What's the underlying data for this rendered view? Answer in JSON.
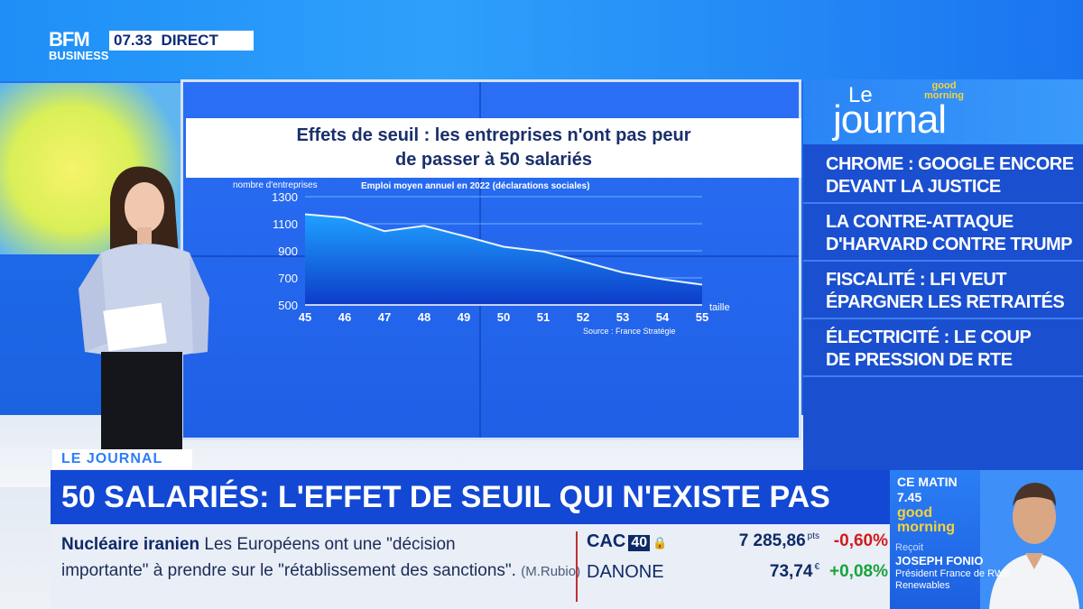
{
  "branding": {
    "logo_top": "BFM",
    "logo_bottom": "BUSINESS",
    "clock": "07.33",
    "live": "DIRECT"
  },
  "screen": {
    "title_line1": "Effets de seuil : les entreprises n'ont pas peur",
    "title_line2": "de passer à 50 salariés"
  },
  "chart_data": {
    "type": "area",
    "title": "Effets de seuil : les entreprises n'ont pas peur de passer à 50 salariés",
    "subtitle": "Emploi moyen annuel en 2022 (déclarations sociales)",
    "ylabel": "nombre d'entreprises",
    "xlabel": "taille",
    "source": "Source : France Stratégie",
    "x": [
      45,
      46,
      47,
      48,
      49,
      50,
      51,
      52,
      53,
      54,
      55
    ],
    "y": [
      1170,
      1145,
      1045,
      1085,
      1010,
      930,
      895,
      820,
      740,
      690,
      650
    ],
    "ylim": [
      500,
      1300
    ],
    "yticks": [
      1300,
      1100,
      900,
      700,
      500
    ],
    "grid": true,
    "colors": {
      "fill": "#1fa0ff",
      "line": "#e8f4ff",
      "grid": "#6ab4ff"
    }
  },
  "right_panel": {
    "le": "Le",
    "journal": "journal",
    "gm_badge_top": "good",
    "gm_badge_bottom": "morning",
    "items": [
      {
        "line1": "Chrome : Google encore",
        "line2": "devant la justice"
      },
      {
        "line1": "La contre-attaque",
        "line2": "d'Harvard contre Trump"
      },
      {
        "line1": "Fiscalité : LFI veut",
        "line2": "épargner les retraités"
      },
      {
        "line1": "Électricité : le coup",
        "line2": "de pression de RTE"
      }
    ]
  },
  "lower_third": {
    "tag": "LE JOURNAL",
    "headline": "50 SALARIÉS: L'EFFET DE SEUIL QUI N'EXISTE PAS"
  },
  "ticker": {
    "news_topic": "Nucléaire iranien",
    "news_text1": "Les Européens ont une \"décision",
    "news_text2": "importante\" à prendre sur le \"rétablissement des sanctions\".",
    "news_source": "(M.Rubio)"
  },
  "markets": [
    {
      "name": "CAC",
      "badge": "40",
      "value": "7 285,86",
      "unit": "pts",
      "change": "-0,60%",
      "change_color": "#d01c1c"
    },
    {
      "name": "DANONE",
      "badge": "",
      "value": "73,74",
      "unit": "€",
      "change": "+0,08%",
      "change_color": "#18a33a"
    }
  ],
  "guest": {
    "ce_matin": "CE MATIN",
    "time": "7.45",
    "gm_top": "good",
    "gm_bottom": "morning",
    "recoit": "Reçoit",
    "name": "JOSEPH FONIO",
    "role": "Président France de RWE Renewables"
  },
  "colors": {
    "accent": "#1348d4",
    "negative": "#d01c1c",
    "positive": "#18a33a",
    "highlight": "#f7d33a"
  }
}
